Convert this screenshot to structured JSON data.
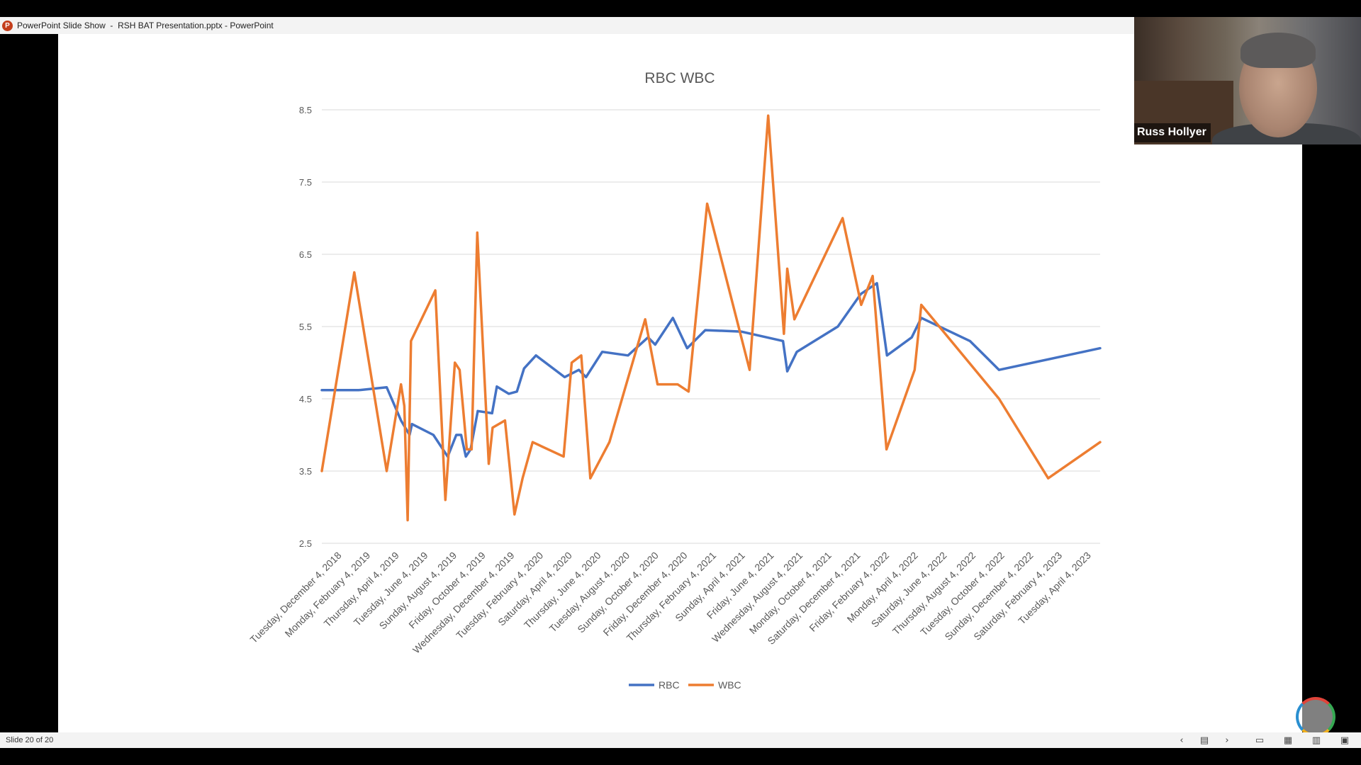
{
  "window": {
    "title": "PowerPoint Slide Show  -  RSH BAT Presentation.pptx - PowerPoint",
    "app_icon": "powerpoint-icon",
    "app_icon_letter": "P"
  },
  "video": {
    "participant_name": "Russ Hollyer"
  },
  "status": {
    "slide_counter": "Slide 20 of 20"
  },
  "colors": {
    "rbc": "#4472c4",
    "wbc": "#ed7d31",
    "grid": "#d9d9d9",
    "text": "#595959"
  },
  "icons": [
    "previous-slide-icon",
    "slide-menu-icon",
    "next-slide-icon",
    "normal-view-icon",
    "slide-sorter-icon",
    "reading-view-icon",
    "slideshow-icon"
  ],
  "chart_data": {
    "type": "line",
    "title": "RBC WBC",
    "x_type": "date",
    "y_ticks": [
      2.5,
      3.5,
      4.5,
      5.5,
      6.5,
      7.5,
      8.5
    ],
    "ylim": [
      2.5,
      8.5
    ],
    "x_range": [
      "2018-12-04",
      "2023-05-24"
    ],
    "x_tick_labels": [
      "Tuesday, December 4, 2018",
      "Monday, February 4, 2019",
      "Thursday, April 4, 2019",
      "Tuesday, June 4, 2019",
      "Sunday, August 4, 2019",
      "Friday, October 4, 2019",
      "Wednesday, December 4, 2019",
      "Tuesday, February 4, 2020",
      "Saturday, April 4, 2020",
      "Thursday, June 4, 2020",
      "Tuesday, August 4, 2020",
      "Sunday, October 4, 2020",
      "Friday, December 4, 2020",
      "Thursday, February 4, 2021",
      "Sunday, April 4, 2021",
      "Friday, June 4, 2021",
      "Wednesday, August 4, 2021",
      "Monday, October 4, 2021",
      "Saturday, December 4, 2021",
      "Friday, February 4, 2022",
      "Monday, April 4, 2022",
      "Saturday, June 4, 2022",
      "Thursday, August 4, 2022",
      "Tuesday, October 4, 2022",
      "Sunday, December 4, 2022",
      "Saturday, February 4, 2023",
      "Tuesday, April 4, 2023"
    ],
    "legend_position": "bottom",
    "grid": true,
    "series": [
      {
        "name": "RBC",
        "color": "#4472c4",
        "points": [
          [
            "2018-12-04",
            4.62
          ],
          [
            "2019-02-19",
            4.62
          ],
          [
            "2019-04-19",
            4.66
          ],
          [
            "2019-05-19",
            4.2
          ],
          [
            "2019-06-06",
            4.0
          ],
          [
            "2019-06-11",
            4.15
          ],
          [
            "2019-07-26",
            4.0
          ],
          [
            "2019-08-25",
            3.7
          ],
          [
            "2019-09-12",
            4.0
          ],
          [
            "2019-09-22",
            4.0
          ],
          [
            "2019-10-02",
            3.7
          ],
          [
            "2019-10-12",
            3.8
          ],
          [
            "2019-10-27",
            4.33
          ],
          [
            "2019-11-26",
            4.3
          ],
          [
            "2019-12-06",
            4.67
          ],
          [
            "2019-12-31",
            4.57
          ],
          [
            "2020-01-17",
            4.6
          ],
          [
            "2020-02-01",
            4.92
          ],
          [
            "2020-02-26",
            5.1
          ],
          [
            "2020-04-26",
            4.8
          ],
          [
            "2020-05-26",
            4.9
          ],
          [
            "2020-06-10",
            4.8
          ],
          [
            "2020-07-14",
            5.15
          ],
          [
            "2020-09-06",
            5.1
          ],
          [
            "2020-10-18",
            5.35
          ],
          [
            "2020-11-02",
            5.25
          ],
          [
            "2020-12-09",
            5.62
          ],
          [
            "2021-01-08",
            5.2
          ],
          [
            "2021-02-15",
            5.45
          ],
          [
            "2021-05-01",
            5.43
          ],
          [
            "2021-07-28",
            5.3
          ],
          [
            "2021-08-06",
            4.88
          ],
          [
            "2021-08-26",
            5.15
          ],
          [
            "2021-11-20",
            5.5
          ],
          [
            "2022-01-07",
            5.95
          ],
          [
            "2022-02-10",
            6.1
          ],
          [
            "2022-03-03",
            5.1
          ],
          [
            "2022-04-24",
            5.35
          ],
          [
            "2022-05-14",
            5.62
          ],
          [
            "2022-08-24",
            5.3
          ],
          [
            "2022-10-24",
            4.9
          ],
          [
            "2023-05-24",
            5.2
          ]
        ]
      },
      {
        "name": "WBC",
        "color": "#ed7d31",
        "points": [
          [
            "2018-12-04",
            3.5
          ],
          [
            "2019-02-10",
            6.25
          ],
          [
            "2019-04-19",
            3.5
          ],
          [
            "2019-05-19",
            4.7
          ],
          [
            "2019-05-26",
            4.4
          ],
          [
            "2019-06-02",
            2.82
          ],
          [
            "2019-06-09",
            5.3
          ],
          [
            "2019-07-30",
            6.0
          ],
          [
            "2019-08-20",
            3.1
          ],
          [
            "2019-09-09",
            5.0
          ],
          [
            "2019-09-19",
            4.9
          ],
          [
            "2019-10-04",
            3.8
          ],
          [
            "2019-10-14",
            3.8
          ],
          [
            "2019-10-26",
            6.8
          ],
          [
            "2019-11-19",
            3.6
          ],
          [
            "2019-11-27",
            4.1
          ],
          [
            "2019-12-23",
            4.2
          ],
          [
            "2020-01-12",
            2.9
          ],
          [
            "2020-01-29",
            3.4
          ],
          [
            "2020-02-19",
            3.9
          ],
          [
            "2020-04-24",
            3.7
          ],
          [
            "2020-05-11",
            5.0
          ],
          [
            "2020-05-31",
            5.1
          ],
          [
            "2020-06-19",
            3.4
          ],
          [
            "2020-07-29",
            3.9
          ],
          [
            "2020-10-12",
            5.6
          ],
          [
            "2020-11-07",
            4.7
          ],
          [
            "2020-12-19",
            4.7
          ],
          [
            "2021-01-11",
            4.6
          ],
          [
            "2021-02-19",
            7.2
          ],
          [
            "2021-05-19",
            4.9
          ],
          [
            "2021-06-27",
            8.42
          ],
          [
            "2021-07-30",
            5.4
          ],
          [
            "2021-08-06",
            6.3
          ],
          [
            "2021-08-21",
            5.6
          ],
          [
            "2021-11-30",
            7.0
          ],
          [
            "2022-01-08",
            5.8
          ],
          [
            "2022-02-01",
            6.2
          ],
          [
            "2022-03-02",
            3.8
          ],
          [
            "2022-04-30",
            4.9
          ],
          [
            "2022-05-14",
            5.8
          ],
          [
            "2022-10-24",
            4.5
          ],
          [
            "2023-02-04",
            3.4
          ],
          [
            "2023-05-24",
            3.9
          ]
        ]
      }
    ]
  }
}
